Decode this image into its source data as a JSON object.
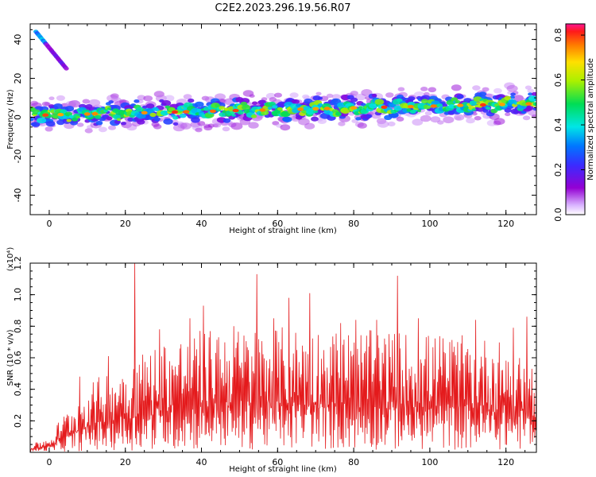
{
  "page": {
    "title": "C2E2.2023.296.19.56.R07"
  },
  "chart_data": [
    {
      "type": "heatmap",
      "title": "C2E2.2023.296.19.56.R07",
      "xlabel": "Height of straight line (km)",
      "ylabel": "Frequency (Hz)",
      "xlim": [
        -5,
        128
      ],
      "ylim": [
        -50,
        48
      ],
      "xticks": [
        "0",
        "20",
        "40",
        "60",
        "80",
        "100",
        "120"
      ],
      "yticks": [
        "-40",
        "-20",
        "0",
        "20",
        "40"
      ],
      "colorbar": {
        "label": "Normalized spectral amplitude",
        "range": [
          0,
          0.85
        ],
        "ticks": [
          "0.0",
          "0.2",
          "0.4",
          "0.6",
          "0.8"
        ],
        "colormap": "rainbow (violet-blue-cyan-green-yellow-red-magenta)"
      },
      "features": [
        {
          "name": "main band",
          "x_range": [
            -5,
            128
          ],
          "center_frequency_start": 1,
          "center_frequency_end": 7,
          "half_width": 4
        },
        {
          "name": "upper streak",
          "x_range": [
            -3.5,
            4.5
          ],
          "frequency_start": 44,
          "frequency_end": 25
        }
      ],
      "colors": {
        "axis": "#000000"
      }
    },
    {
      "type": "line",
      "xlabel": "Height of straight line (km)",
      "ylabel": "SNR (10 * v/v)",
      "exponent_label": "(x10⁴)",
      "xlim": [
        -5,
        128
      ],
      "ylim": [
        0,
        1.2
      ],
      "xticks": [
        "0",
        "20",
        "40",
        "60",
        "80",
        "100",
        "120"
      ],
      "yticks": [
        "0.2",
        "0.4",
        "0.6",
        "0.8",
        "1.0",
        "1.2"
      ],
      "series": [
        {
          "color": "#e41a1c",
          "envelope": [
            [
              -5,
              0.06
            ],
            [
              0,
              0.12
            ],
            [
              5,
              0.28
            ],
            [
              10,
              0.42
            ],
            [
              15,
              0.52
            ],
            [
              20,
              0.58
            ],
            [
              25,
              0.65
            ],
            [
              30,
              0.72
            ],
            [
              40,
              0.78
            ],
            [
              60,
              0.8
            ],
            [
              80,
              0.78
            ],
            [
              100,
              0.76
            ],
            [
              120,
              0.72
            ],
            [
              128,
              0.6
            ]
          ],
          "peaks": [
            {
              "x": 8,
              "y": 0.48
            },
            {
              "x": 15.5,
              "y": 0.61
            },
            {
              "x": 22.5,
              "y": 1.2
            },
            {
              "x": 29,
              "y": 0.78
            },
            {
              "x": 37,
              "y": 0.85
            },
            {
              "x": 40.5,
              "y": 0.93
            },
            {
              "x": 44.5,
              "y": 0.73
            },
            {
              "x": 48.5,
              "y": 0.8
            },
            {
              "x": 54.5,
              "y": 1.13
            },
            {
              "x": 59,
              "y": 0.85
            },
            {
              "x": 63,
              "y": 0.98
            },
            {
              "x": 68.5,
              "y": 1.01
            },
            {
              "x": 76.5,
              "y": 0.82
            },
            {
              "x": 80.5,
              "y": 0.84
            },
            {
              "x": 86,
              "y": 0.84
            },
            {
              "x": 91.5,
              "y": 1.12
            },
            {
              "x": 97,
              "y": 0.85
            },
            {
              "x": 112,
              "y": 0.84
            },
            {
              "x": 122,
              "y": 0.79
            },
            {
              "x": 125.5,
              "y": 0.86
            }
          ]
        }
      ]
    }
  ]
}
